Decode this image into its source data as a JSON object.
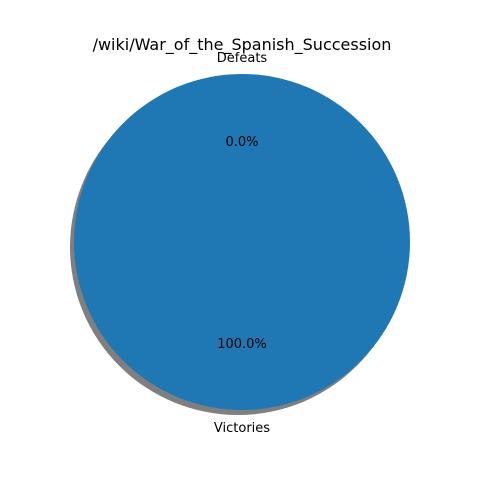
{
  "chart_data": {
    "type": "pie",
    "title": "/wiki/War_of_the_Spanish_Succession",
    "slices": [
      {
        "label": "Victories",
        "value": 100.0,
        "pct_label": "100.0%",
        "color": "#1f77b4"
      },
      {
        "label": "Defeats",
        "value": 0.0,
        "pct_label": "0.0%",
        "color": "#ff7f0e"
      }
    ],
    "shadow": true,
    "legend": "none"
  }
}
